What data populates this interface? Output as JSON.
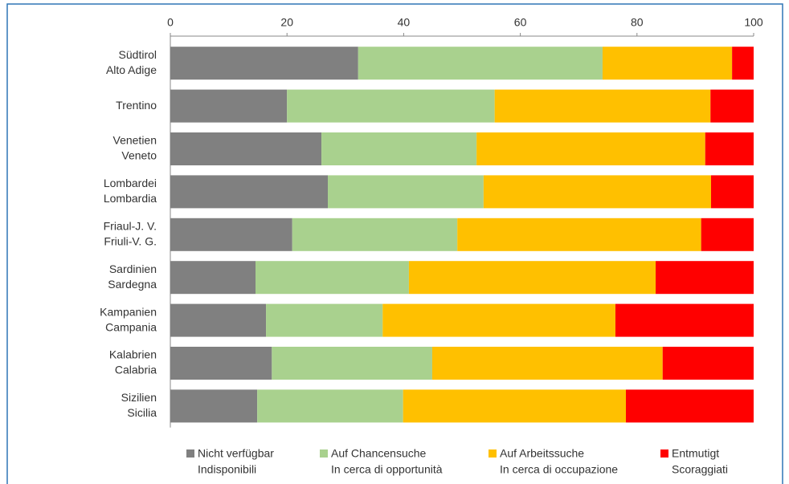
{
  "chart_data": {
    "type": "stacked-bar-horizontal",
    "categories": [
      [
        "Südtirol",
        "Alto Adige"
      ],
      [
        "Trentino"
      ],
      [
        "Venetien",
        "Veneto"
      ],
      [
        "Lombardei",
        "Lombardia"
      ],
      [
        "Friaul-J. V.",
        "Friuli-V. G."
      ],
      [
        "Sardinien",
        "Sardegna"
      ],
      [
        "Kampanien",
        "Campania"
      ],
      [
        "Kalabrien",
        "Calabria"
      ],
      [
        "Sizilien",
        "Sicilia"
      ]
    ],
    "series": [
      {
        "name": [
          "Nicht verfügbar",
          "Indisponibili"
        ],
        "color": "#808080",
        "values": [
          32.2,
          20.0,
          25.9,
          27.0,
          20.9,
          14.6,
          16.4,
          17.4,
          14.9
        ]
      },
      {
        "name": [
          "Auf Chancensuche",
          "In cerca di opportunità"
        ],
        "color": "#a9d18e",
        "values": [
          41.9,
          35.6,
          26.6,
          26.7,
          28.3,
          26.3,
          20.0,
          27.5,
          25.0
        ]
      },
      {
        "name": [
          "Auf Arbeitssuche",
          "In cerca di occupazione"
        ],
        "color": "#ffc000",
        "values": [
          22.2,
          37.0,
          39.2,
          39.0,
          41.8,
          42.3,
          39.9,
          39.5,
          38.2
        ]
      },
      {
        "name": [
          "Entmutigt",
          "Scoraggiati"
        ],
        "color": "#ff0000",
        "values": [
          3.7,
          7.4,
          8.3,
          7.3,
          9.0,
          16.8,
          23.7,
          15.6,
          21.9
        ]
      }
    ],
    "xlim": [
      0,
      100
    ],
    "xticks": [
      0,
      20,
      40,
      60,
      80,
      100
    ]
  }
}
